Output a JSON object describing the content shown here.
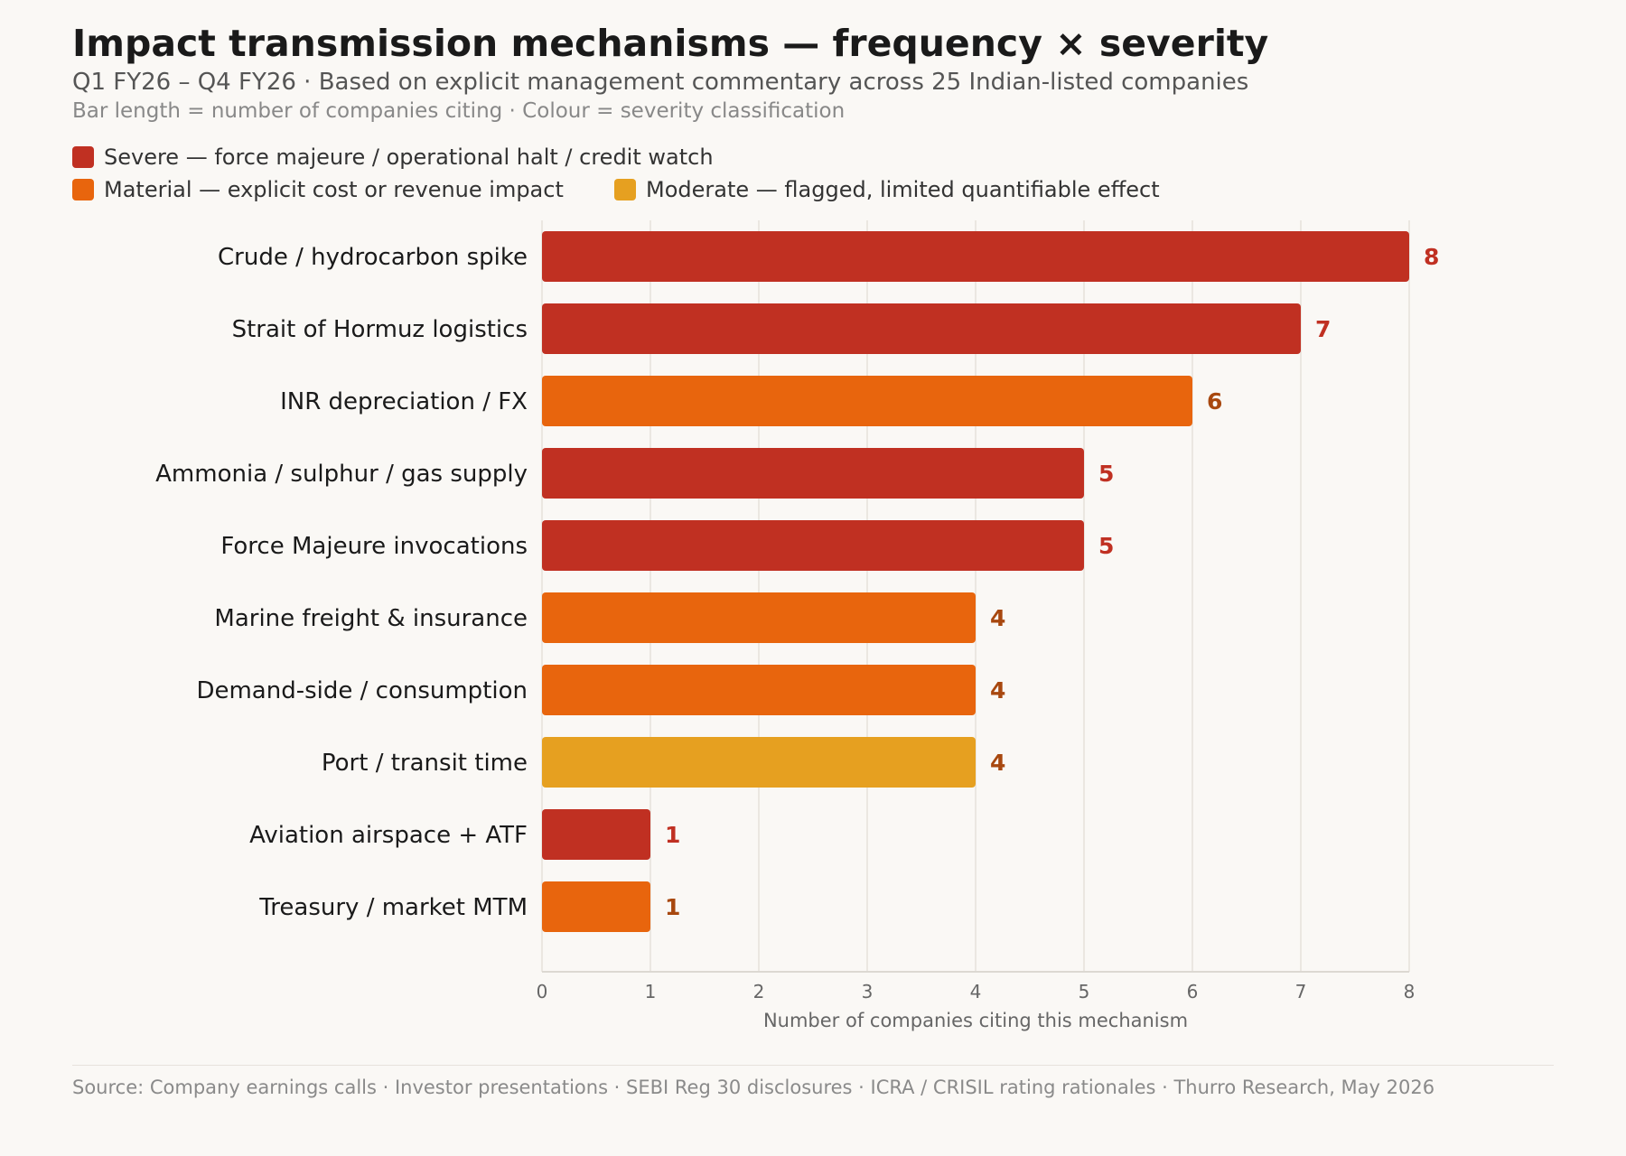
{
  "header": {
    "title": "Impact transmission mechanisms — frequency × severity",
    "subtitle": "Q1 FY26 – Q4 FY26 · Based on explicit management commentary across 25 Indian-listed companies",
    "note": "Bar length = number of companies citing · Colour = severity classification"
  },
  "legend": [
    {
      "label": "Severe — force majeure / operational halt / credit watch",
      "color": "#c03022"
    },
    {
      "label": "Material — explicit cost or revenue impact",
      "color": "#e8650d"
    },
    {
      "label": "Moderate — flagged, limited quantifiable effect",
      "color": "#e6a020"
    }
  ],
  "chart_data": {
    "type": "bar",
    "orientation": "horizontal",
    "categories": [
      "Crude / hydrocarbon spike",
      "Strait of Hormuz logistics",
      "INR depreciation / FX",
      "Ammonia / sulphur / gas supply",
      "Force Majeure invocations",
      "Marine freight & insurance",
      "Demand-side / consumption",
      "Port / transit time",
      "Aviation airspace + ATF",
      "Treasury / market MTM"
    ],
    "values": [
      8,
      7,
      6,
      5,
      5,
      4,
      4,
      4,
      1,
      1
    ],
    "severity": [
      "Severe",
      "Severe",
      "Material",
      "Severe",
      "Severe",
      "Material",
      "Material",
      "Moderate",
      "Severe",
      "Material"
    ],
    "colors": {
      "Severe": "#c03022",
      "Material": "#e8650d",
      "Moderate": "#e6a020"
    },
    "label_colors": {
      "Severe": "#c03022",
      "Material": "#a8480f",
      "Moderate": "#a8480f"
    },
    "xlabel": "Number of companies citing this mechanism",
    "ylabel": "",
    "xlim": [
      0,
      8
    ],
    "xticks": [
      0,
      1,
      2,
      3,
      4,
      5,
      6,
      7,
      8
    ],
    "grid": true,
    "legend_position": "top-left"
  },
  "footer": {
    "source": "Source: Company earnings calls · Investor presentations · SEBI Reg 30 disclosures · ICRA / CRISIL rating rationales · Thurro Research, May 2026"
  }
}
